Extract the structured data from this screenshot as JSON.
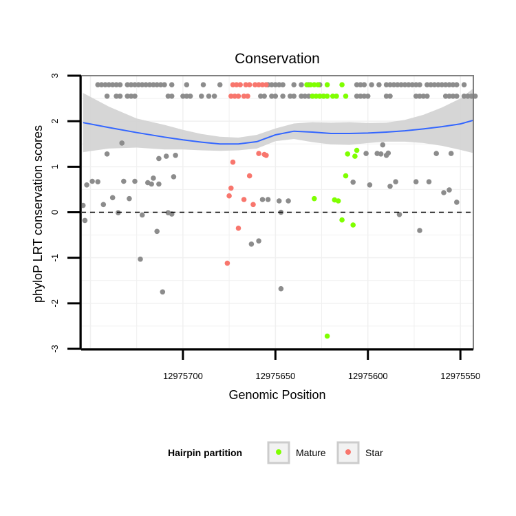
{
  "chart_data": {
    "type": "scatter",
    "title": "Conservation",
    "xlabel": "Genomic Position",
    "ylabel": "phyloP LRT conservation scores",
    "x_reversed": true,
    "xlim": [
      12975755,
      12975543
    ],
    "ylim": [
      -3,
      3
    ],
    "x_ticks": [
      12975700,
      12975650,
      12975600,
      12975550
    ],
    "x_tick_labels": [
      "12975700",
      "12975650",
      "12975600",
      "12975550"
    ],
    "y_ticks": [
      -3,
      -2,
      -1,
      0,
      1,
      2,
      3
    ],
    "y_tick_labels": [
      "-3",
      "-2",
      "-1",
      "0",
      "1",
      "2",
      "3"
    ],
    "reference_line": {
      "y": 0,
      "style": "dashed"
    },
    "legend": {
      "title": "Hairpin partition",
      "position": "bottom",
      "entries": [
        {
          "label": "Mature",
          "color": "#7fff00"
        },
        {
          "label": "Star",
          "color": "#f8766d"
        }
      ]
    },
    "colors": {
      "other": "#8c8c8c",
      "smooth": "#3366ff",
      "ribbon": "#d2d2d2",
      "mature": "#7fff00",
      "star": "#f8766d"
    },
    "series": [
      {
        "name": "Other",
        "color": "#8c8c8c",
        "points": [
          [
            12975746,
            2.8
          ],
          [
            12975744,
            2.8
          ],
          [
            12975742,
            2.8
          ],
          [
            12975740,
            2.8
          ],
          [
            12975738,
            2.8
          ],
          [
            12975736,
            2.8
          ],
          [
            12975734,
            2.8
          ],
          [
            12975730,
            2.8
          ],
          [
            12975728,
            2.8
          ],
          [
            12975726,
            2.8
          ],
          [
            12975724,
            2.8
          ],
          [
            12975722,
            2.8
          ],
          [
            12975720,
            2.8
          ],
          [
            12975718,
            2.8
          ],
          [
            12975716,
            2.8
          ],
          [
            12975714,
            2.8
          ],
          [
            12975712,
            2.8
          ],
          [
            12975710,
            2.8
          ],
          [
            12975706,
            2.8
          ],
          [
            12975698,
            2.8
          ],
          [
            12975689,
            2.8
          ],
          [
            12975680,
            2.8
          ],
          [
            12975654,
            2.8
          ],
          [
            12975652,
            2.8
          ],
          [
            12975650,
            2.8
          ],
          [
            12975648,
            2.8
          ],
          [
            12975646,
            2.8
          ],
          [
            12975640,
            2.8
          ],
          [
            12975636,
            2.8
          ],
          [
            12975632,
            2.8
          ],
          [
            12975626,
            2.8
          ],
          [
            12975606,
            2.8
          ],
          [
            12975604,
            2.8
          ],
          [
            12975602,
            2.8
          ],
          [
            12975598,
            2.8
          ],
          [
            12975594,
            2.8
          ],
          [
            12975590,
            2.8
          ],
          [
            12975588,
            2.8
          ],
          [
            12975586,
            2.8
          ],
          [
            12975584,
            2.8
          ],
          [
            12975582,
            2.8
          ],
          [
            12975580,
            2.8
          ],
          [
            12975578,
            2.8
          ],
          [
            12975576,
            2.8
          ],
          [
            12975574,
            2.8
          ],
          [
            12975572,
            2.8
          ],
          [
            12975568,
            2.8
          ],
          [
            12975566,
            2.8
          ],
          [
            12975564,
            2.8
          ],
          [
            12975562,
            2.8
          ],
          [
            12975560,
            2.8
          ],
          [
            12975558,
            2.8
          ],
          [
            12975556,
            2.8
          ],
          [
            12975554,
            2.8
          ],
          [
            12975552,
            2.8
          ],
          [
            12975548,
            2.8
          ],
          [
            12975741,
            2.55
          ],
          [
            12975736,
            2.55
          ],
          [
            12975734,
            2.55
          ],
          [
            12975730,
            2.55
          ],
          [
            12975728,
            2.55
          ],
          [
            12975726,
            2.55
          ],
          [
            12975708,
            2.55
          ],
          [
            12975706,
            2.55
          ],
          [
            12975700,
            2.55
          ],
          [
            12975698,
            2.55
          ],
          [
            12975696,
            2.55
          ],
          [
            12975690,
            2.55
          ],
          [
            12975686,
            2.55
          ],
          [
            12975683,
            2.55
          ],
          [
            12975658,
            2.55
          ],
          [
            12975656,
            2.55
          ],
          [
            12975652,
            2.55
          ],
          [
            12975650,
            2.55
          ],
          [
            12975646,
            2.55
          ],
          [
            12975642,
            2.55
          ],
          [
            12975640,
            2.55
          ],
          [
            12975636,
            2.55
          ],
          [
            12975634,
            2.55
          ],
          [
            12975632,
            2.55
          ],
          [
            12975630,
            2.55
          ],
          [
            12975626,
            2.55
          ],
          [
            12975624,
            2.55
          ],
          [
            12975606,
            2.55
          ],
          [
            12975604,
            2.55
          ],
          [
            12975602,
            2.55
          ],
          [
            12975600,
            2.55
          ],
          [
            12975590,
            2.55
          ],
          [
            12975588,
            2.55
          ],
          [
            12975574,
            2.55
          ],
          [
            12975572,
            2.55
          ],
          [
            12975570,
            2.55
          ],
          [
            12975568,
            2.55
          ],
          [
            12975558,
            2.55
          ],
          [
            12975556,
            2.55
          ],
          [
            12975554,
            2.55
          ],
          [
            12975552,
            2.55
          ],
          [
            12975548,
            2.55
          ],
          [
            12975546,
            2.55
          ],
          [
            12975544,
            2.55
          ],
          [
            12975542,
            2.55
          ],
          [
            12975754,
            0.15
          ],
          [
            12975753,
            -0.18
          ],
          [
            12975752,
            0.6
          ],
          [
            12975749,
            0.68
          ],
          [
            12975746,
            0.67
          ],
          [
            12975743,
            0.17
          ],
          [
            12975741,
            1.28
          ],
          [
            12975738,
            0.32
          ],
          [
            12975735,
            -0.01
          ],
          [
            12975733,
            1.52
          ],
          [
            12975732,
            0.68
          ],
          [
            12975729,
            0.3
          ],
          [
            12975726,
            0.68
          ],
          [
            12975723,
            -1.03
          ],
          [
            12975722,
            -0.06
          ],
          [
            12975719,
            0.65
          ],
          [
            12975717,
            0.62
          ],
          [
            12975716,
            0.75
          ],
          [
            12975714,
            -0.42
          ],
          [
            12975713,
            0.62
          ],
          [
            12975713,
            1.18
          ],
          [
            12975711,
            -1.75
          ],
          [
            12975709,
            1.23
          ],
          [
            12975708,
            -0.01
          ],
          [
            12975706,
            -0.04
          ],
          [
            12975705,
            0.78
          ],
          [
            12975704,
            1.25
          ],
          [
            12975663,
            -0.7
          ],
          [
            12975659,
            -0.63
          ],
          [
            12975657,
            0.28
          ],
          [
            12975654,
            0.28
          ],
          [
            12975648,
            0.25
          ],
          [
            12975647,
            -1.68
          ],
          [
            12975647,
            0.0
          ],
          [
            12975643,
            0.25
          ],
          [
            12975608,
            0.66
          ],
          [
            12975601,
            1.29
          ],
          [
            12975599,
            0.6
          ],
          [
            12975595,
            1.29
          ],
          [
            12975593,
            1.28
          ],
          [
            12975592,
            1.48
          ],
          [
            12975590,
            1.25
          ],
          [
            12975589,
            1.3
          ],
          [
            12975588,
            0.57
          ],
          [
            12975585,
            0.67
          ],
          [
            12975583,
            -0.05
          ],
          [
            12975574,
            0.67
          ],
          [
            12975572,
            -0.4
          ],
          [
            12975567,
            0.67
          ],
          [
            12975563,
            1.29
          ],
          [
            12975559,
            0.43
          ],
          [
            12975556,
            0.49
          ],
          [
            12975555,
            1.29
          ],
          [
            12975552,
            0.22
          ]
        ]
      },
      {
        "name": "Mature",
        "color": "#7fff00",
        "points": [
          [
            12975633,
            2.8
          ],
          [
            12975631,
            2.8
          ],
          [
            12975629,
            2.8
          ],
          [
            12975627,
            2.8
          ],
          [
            12975622,
            2.8
          ],
          [
            12975614,
            2.8
          ],
          [
            12975630,
            2.55
          ],
          [
            12975628,
            2.55
          ],
          [
            12975626,
            2.55
          ],
          [
            12975624,
            2.55
          ],
          [
            12975622,
            2.55
          ],
          [
            12975619,
            2.55
          ],
          [
            12975617,
            2.55
          ],
          [
            12975612,
            2.55
          ],
          [
            12975622,
            -2.72
          ],
          [
            12975618,
            0.27
          ],
          [
            12975616,
            0.25
          ],
          [
            12975614,
            -0.17
          ],
          [
            12975612,
            0.8
          ],
          [
            12975611,
            1.28
          ],
          [
            12975608,
            -0.28
          ],
          [
            12975607,
            1.23
          ],
          [
            12975606,
            1.36
          ],
          [
            12975629,
            0.3
          ]
        ]
      },
      {
        "name": "Star",
        "color": "#f8766d",
        "points": [
          [
            12975673,
            2.8
          ],
          [
            12975671,
            2.8
          ],
          [
            12975669,
            2.8
          ],
          [
            12975666,
            2.8
          ],
          [
            12975664,
            2.8
          ],
          [
            12975661,
            2.8
          ],
          [
            12975659,
            2.8
          ],
          [
            12975657,
            2.8
          ],
          [
            12975655,
            2.8
          ],
          [
            12975674,
            2.55
          ],
          [
            12975672,
            2.55
          ],
          [
            12975670,
            2.55
          ],
          [
            12975667,
            2.55
          ],
          [
            12975665,
            2.55
          ],
          [
            12975676,
            -1.12
          ],
          [
            12975675,
            0.36
          ],
          [
            12975674,
            0.53
          ],
          [
            12975673,
            1.1
          ],
          [
            12975670,
            -0.35
          ],
          [
            12975667,
            0.28
          ],
          [
            12975664,
            0.8
          ],
          [
            12975662,
            0.17
          ],
          [
            12975659,
            1.29
          ],
          [
            12975656,
            1.27
          ],
          [
            12975655,
            1.25
          ]
        ]
      }
    ],
    "smooth_curve": {
      "x": [
        12975754,
        12975740,
        12975725,
        12975710,
        12975700,
        12975690,
        12975680,
        12975670,
        12975660,
        12975650,
        12975640,
        12975630,
        12975620,
        12975610,
        12975600,
        12975590,
        12975580,
        12975570,
        12975560,
        12975550,
        12975543
      ],
      "y": [
        1.97,
        1.86,
        1.75,
        1.65,
        1.59,
        1.54,
        1.5,
        1.5,
        1.55,
        1.7,
        1.78,
        1.76,
        1.73,
        1.73,
        1.74,
        1.76,
        1.79,
        1.83,
        1.88,
        1.94,
        2.02
      ],
      "ymin": [
        1.32,
        1.4,
        1.42,
        1.38,
        1.38,
        1.36,
        1.35,
        1.36,
        1.4,
        1.56,
        1.61,
        1.54,
        1.49,
        1.48,
        1.52,
        1.55,
        1.55,
        1.52,
        1.46,
        1.37,
        1.3
      ],
      "ymax": [
        2.62,
        2.32,
        2.06,
        1.92,
        1.81,
        1.72,
        1.66,
        1.64,
        1.7,
        1.84,
        1.95,
        1.98,
        1.97,
        1.98,
        1.96,
        1.97,
        2.03,
        2.14,
        2.3,
        2.5,
        2.72
      ]
    }
  }
}
